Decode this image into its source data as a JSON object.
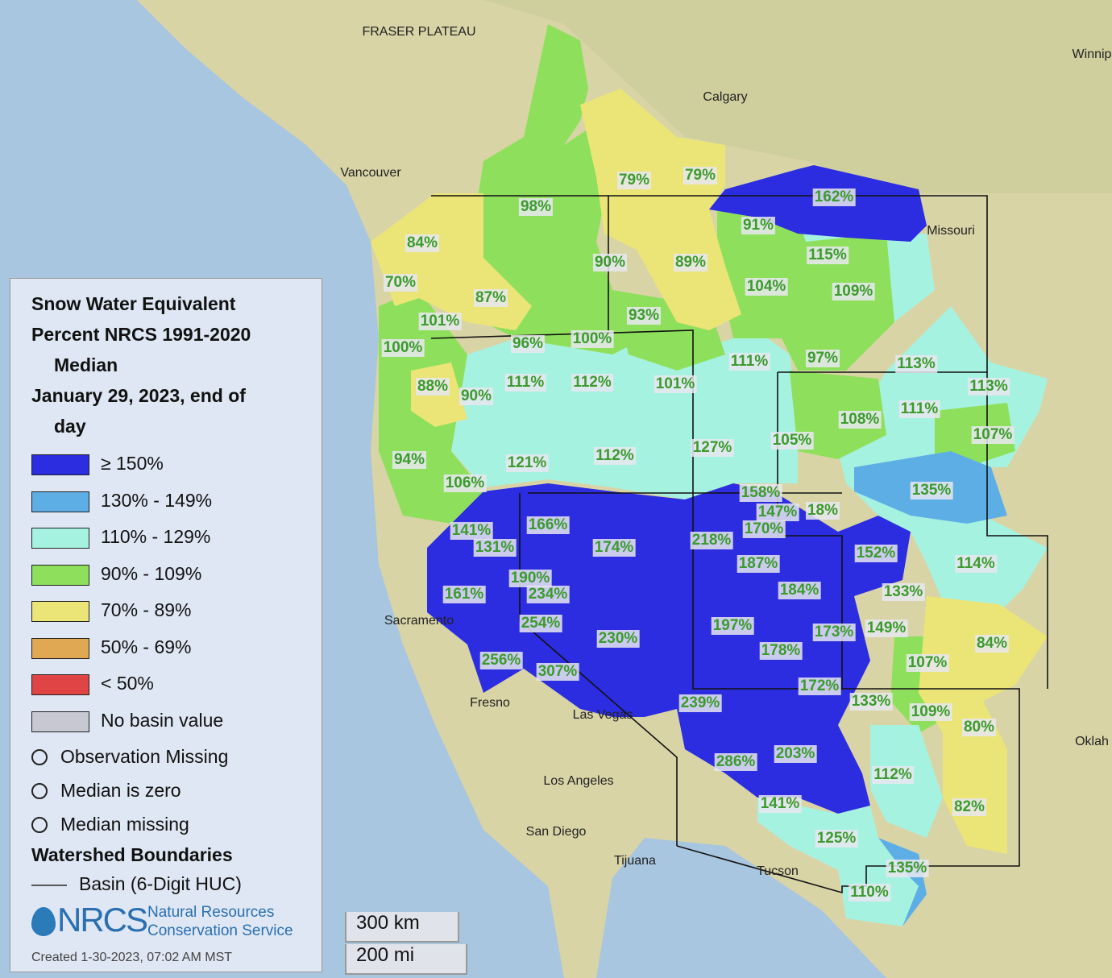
{
  "legend": {
    "title_lines": [
      "Snow Water Equivalent",
      "Percent NRCS 1991-2020",
      "Median",
      "January 29, 2023, end of",
      "day"
    ],
    "classes": [
      {
        "label": "≥ 150%",
        "color": "#2c2ce0"
      },
      {
        "label": "130% - 149%",
        "color": "#5eaee6"
      },
      {
        "label": "110% - 129%",
        "color": "#a6f2e0"
      },
      {
        "label": "90% - 109%",
        "color": "#8ee05c"
      },
      {
        "label": "70% - 89%",
        "color": "#ebe577"
      },
      {
        "label": "50% - 69%",
        "color": "#e0a852"
      },
      {
        "label": "< 50%",
        "color": "#e04444"
      },
      {
        "label": "No basin value",
        "color": "#c8c8d2"
      }
    ],
    "symbols": [
      "Observation Missing",
      "Median is zero",
      "Median missing"
    ],
    "boundaries_title": "Watershed Boundaries",
    "boundary_item": "Basin (6-Digit HUC)"
  },
  "logo": {
    "acronym": "NRCS",
    "line1": "Natural Resources",
    "line2": "Conservation Service"
  },
  "created": "Created 1-30-2023, 07:02 AM MST",
  "scale": [
    "300 km",
    "200 mi"
  ],
  "basin_labels": [
    "162%",
    "79%",
    "79%",
    "98%",
    "91%",
    "84%",
    "115%",
    "90%",
    "89%",
    "70%",
    "104%",
    "109%",
    "87%",
    "93%",
    "101%",
    "100%",
    "96%",
    "100%",
    "111%",
    "97%",
    "113%",
    "88%",
    "90%",
    "111%",
    "112%",
    "101%",
    "113%",
    "111%",
    "108%",
    "107%",
    "105%",
    "127%",
    "94%",
    "121%",
    "112%",
    "106%",
    "135%",
    "158%",
    "147%",
    "18%",
    "141%",
    "166%",
    "170%",
    "218%",
    "131%",
    "174%",
    "152%",
    "187%",
    "114%",
    "190%",
    "161%",
    "234%",
    "184%",
    "133%",
    "254%",
    "197%",
    "173%",
    "149%",
    "230%",
    "84%",
    "178%",
    "256%",
    "107%",
    "307%",
    "172%",
    "133%",
    "239%",
    "109%",
    "80%",
    "203%",
    "286%",
    "112%",
    "141%",
    "82%",
    "125%",
    "135%",
    "110%"
  ],
  "places": [
    "Calgary",
    "Vancouver",
    "Sacramento",
    "Fresno",
    "Los Angeles",
    "San Diego",
    "Tijuana",
    "Tucson",
    "Las Vegas",
    "Missouri",
    "FRASER PLATEAU",
    "Oklah",
    "Winnip"
  ]
}
